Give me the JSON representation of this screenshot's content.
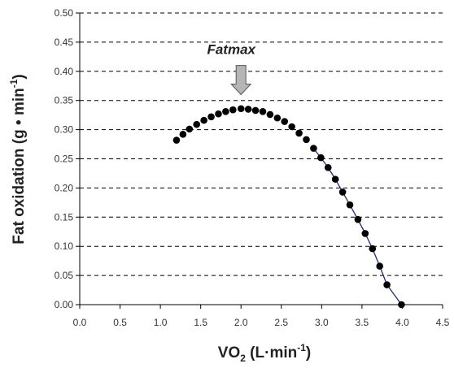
{
  "chart_data": {
    "type": "scatter",
    "title": "",
    "xlabel_main": "VO",
    "xlabel_sub": "2",
    "xlabel_unit_open": " (L",
    "xlabel_unit_dot": "·",
    "xlabel_unit_rest": "min",
    "xlabel_unit_exp": "-1",
    "xlabel_unit_close": ")",
    "ylabel_main": "Fat oxidation (g • min",
    "ylabel_exp": "-1",
    "ylabel_close": ")",
    "xlim": [
      0,
      4.5
    ],
    "ylim": [
      0,
      0.5
    ],
    "x_ticks": [
      "0.0",
      "0.5",
      "1.0",
      "1.5",
      "2.0",
      "2.5",
      "3.0",
      "3.5",
      "4.0",
      "4.5"
    ],
    "y_ticks": [
      "0.00",
      "0.05",
      "0.10",
      "0.15",
      "0.20",
      "0.25",
      "0.30",
      "0.35",
      "0.40",
      "0.45",
      "0.50"
    ],
    "grid": "horizontal-dashed",
    "annotation": {
      "label": "Fatmax",
      "x": 2.0,
      "arrow_top_y": 0.41,
      "arrow_bottom_y": 0.36
    },
    "colors": {
      "points": "#000000",
      "line": "#1f2a7a",
      "grid": "#000000",
      "arrow_fill": "#b5b5b5",
      "arrow_stroke": "#555555"
    },
    "series": [
      {
        "points": [
          [
            1.2,
            0.282
          ],
          [
            1.28,
            0.292
          ],
          [
            1.36,
            0.301
          ],
          [
            1.45,
            0.309
          ],
          [
            1.54,
            0.316
          ],
          [
            1.63,
            0.322
          ],
          [
            1.72,
            0.327
          ],
          [
            1.81,
            0.331
          ],
          [
            1.9,
            0.334
          ],
          [
            2.0,
            0.336
          ],
          [
            2.09,
            0.335
          ],
          [
            2.18,
            0.333
          ],
          [
            2.27,
            0.331
          ],
          [
            2.36,
            0.326
          ],
          [
            2.45,
            0.32
          ],
          [
            2.54,
            0.314
          ],
          [
            2.63,
            0.305
          ],
          [
            2.72,
            0.294
          ],
          [
            2.81,
            0.283
          ],
          [
            2.9,
            0.268
          ],
          [
            2.99,
            0.252
          ],
          [
            3.08,
            0.235
          ],
          [
            3.17,
            0.215
          ],
          [
            3.26,
            0.193
          ],
          [
            3.35,
            0.171
          ],
          [
            3.45,
            0.146
          ],
          [
            3.54,
            0.122
          ],
          [
            3.63,
            0.096
          ],
          [
            3.72,
            0.066
          ],
          [
            3.81,
            0.034
          ],
          [
            3.99,
            0.0
          ]
        ],
        "fit_line_start_x": 2.9
      }
    ]
  }
}
